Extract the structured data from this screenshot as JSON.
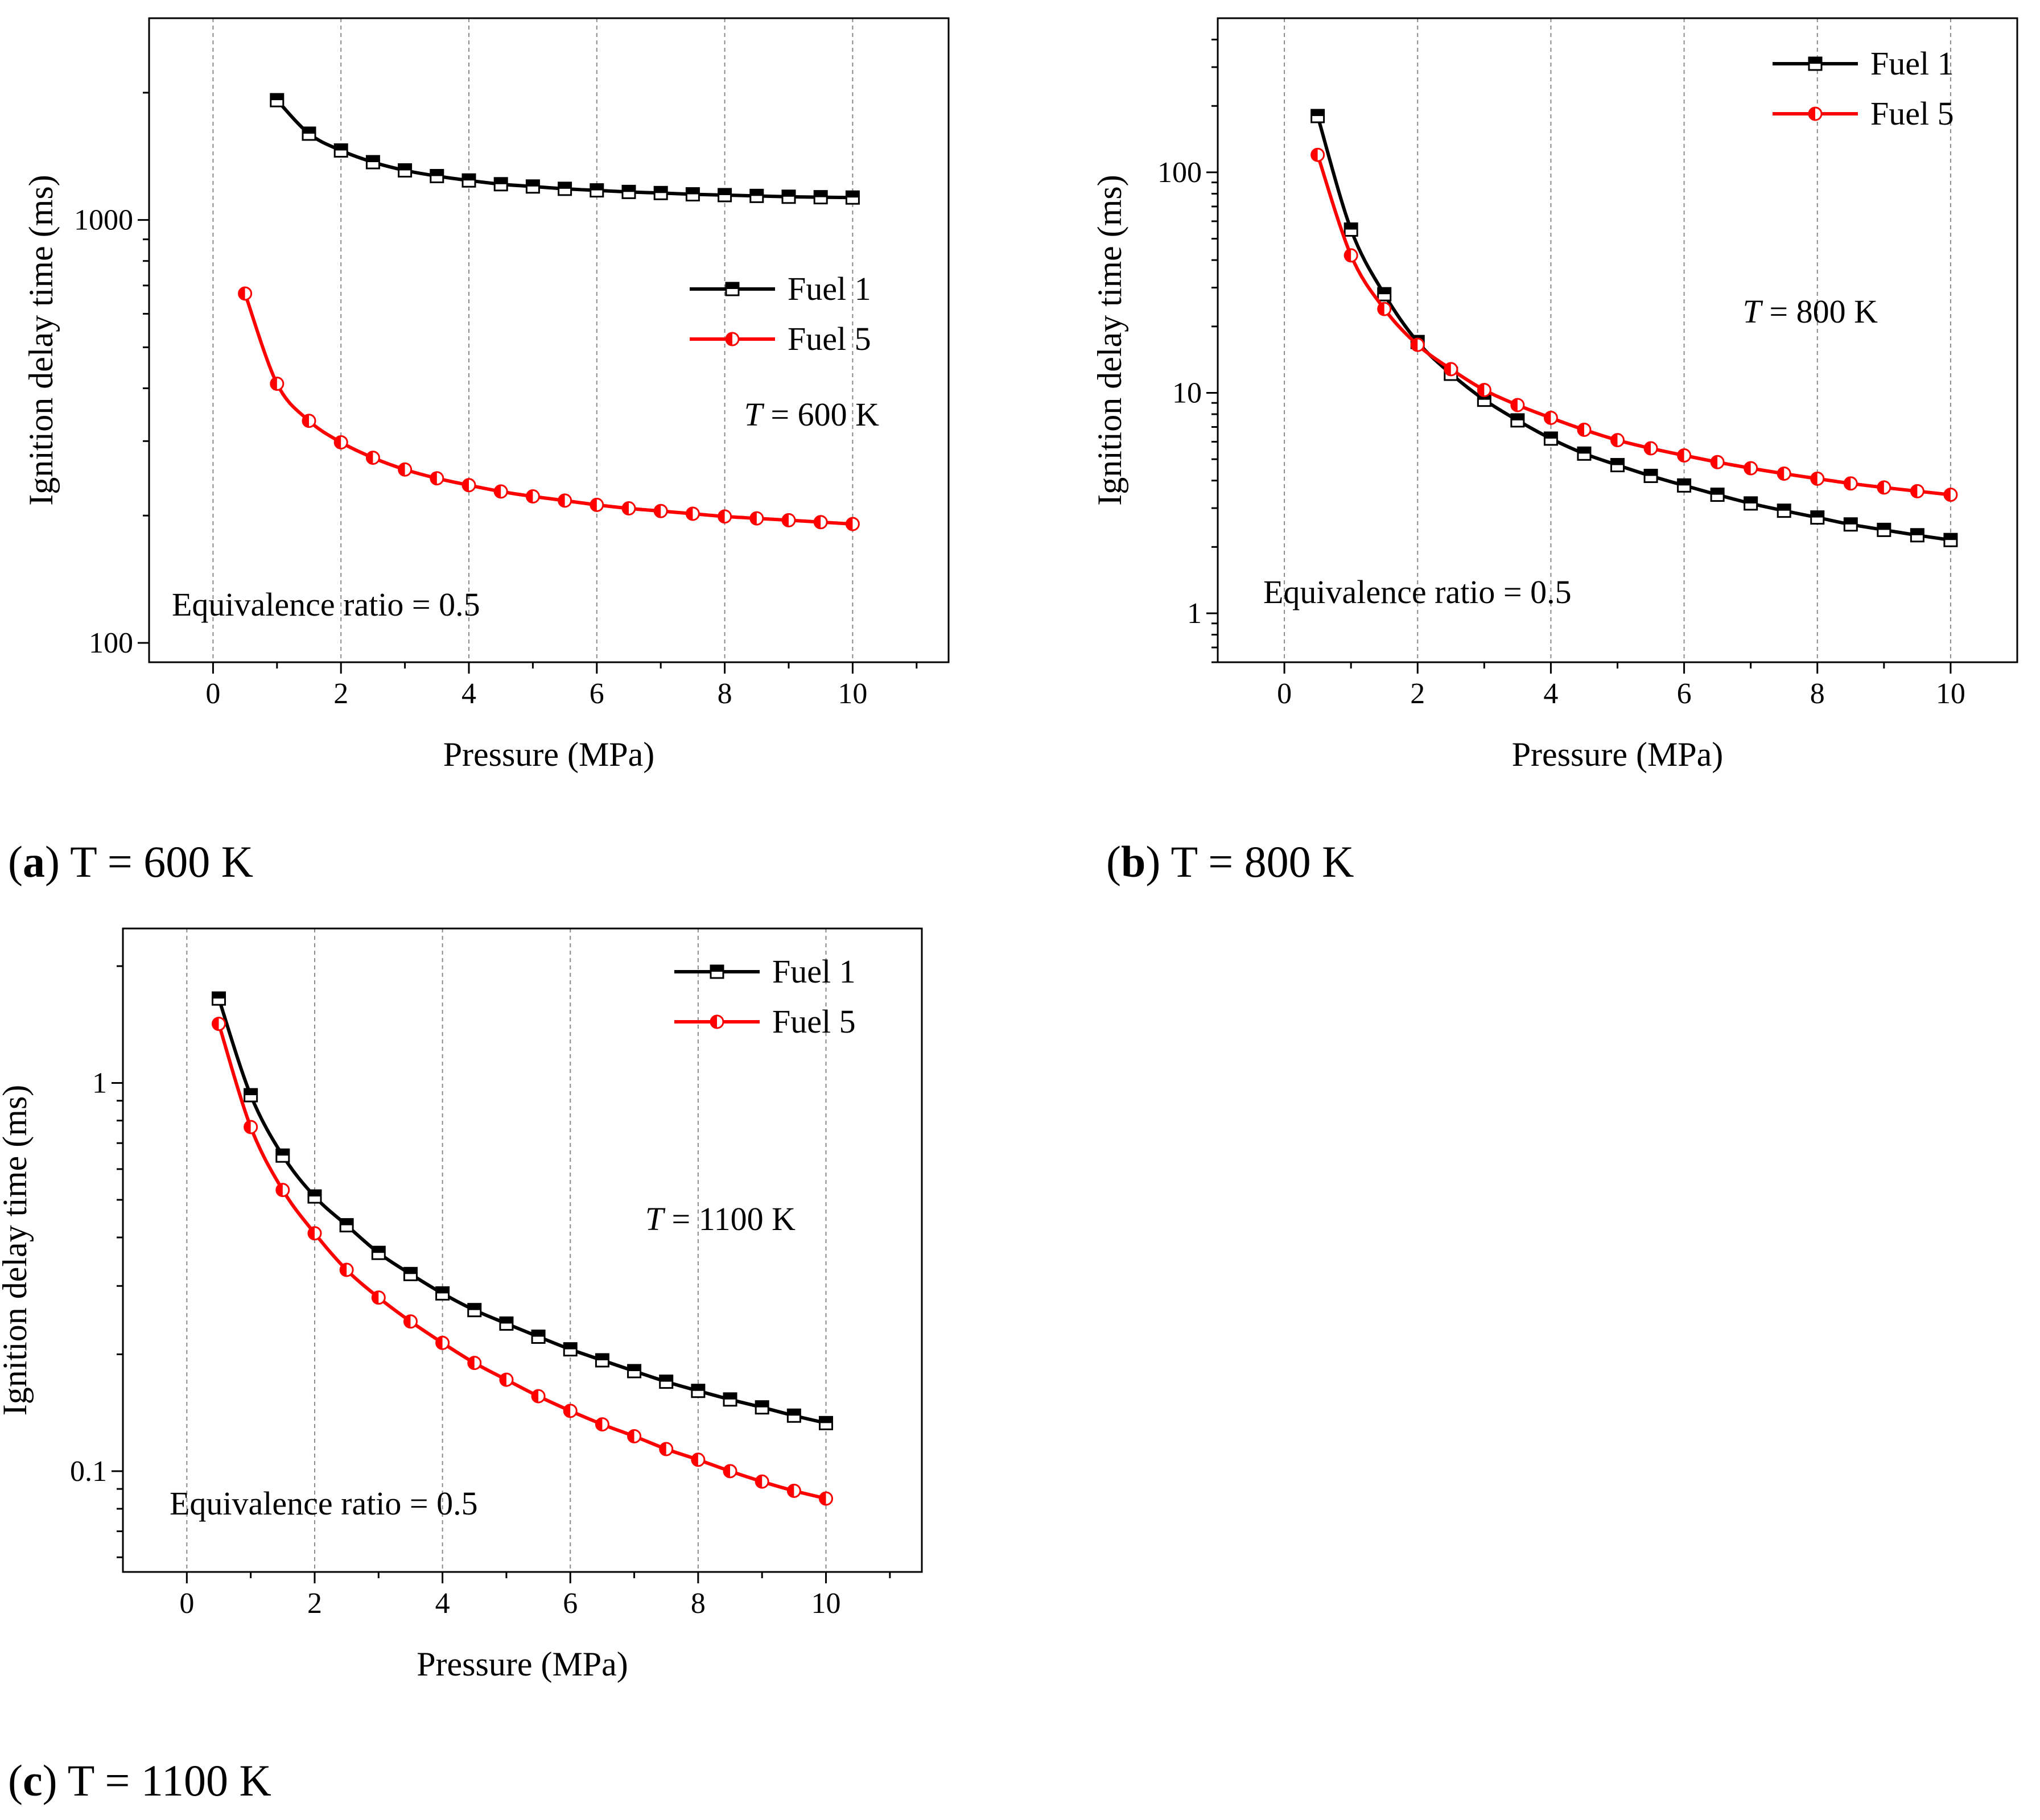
{
  "chart_data": [
    {
      "id": "a",
      "type": "line",
      "yscale": "log",
      "caption": {
        "letter": "a",
        "text": "T = 600 K"
      },
      "xlabel": "Pressure (MPa)",
      "ylabel": "Ignition delay time (ms)",
      "xlim": [
        -1,
        11.5
      ],
      "ylim": [
        90,
        3000
      ],
      "xticks": [
        0,
        2,
        4,
        6,
        8,
        10
      ],
      "xtick_labels": [
        "0",
        "2",
        "4",
        "6",
        "8",
        "10"
      ],
      "yticks": [
        100,
        1000
      ],
      "ytick_labels": [
        "100",
        "1000"
      ],
      "grid": "vertical dashed at x ticks",
      "legend": {
        "position": "middle-right"
      },
      "annotations": {
        "temperature_var": "T",
        "temperature_rest": " = 600 K",
        "equivalence": "Equivalence ratio = 0.5"
      },
      "series": [
        {
          "name": "Fuel 1",
          "color": "#000000",
          "marker": "square",
          "x": [
            1,
            1.5,
            2,
            2.5,
            3,
            3.5,
            4,
            4.5,
            5,
            5.5,
            6,
            6.5,
            7,
            7.5,
            8,
            8.5,
            9,
            9.5,
            10
          ],
          "y": [
            1920,
            1600,
            1460,
            1370,
            1310,
            1270,
            1240,
            1215,
            1200,
            1185,
            1175,
            1165,
            1158,
            1150,
            1145,
            1140,
            1135,
            1132,
            1130
          ]
        },
        {
          "name": "Fuel 5",
          "color": "#ff0000",
          "marker": "circle",
          "x": [
            0.5,
            1,
            1.5,
            2,
            2.5,
            3,
            3.5,
            4,
            4.5,
            5,
            5.5,
            6,
            6.5,
            7,
            7.5,
            8,
            8.5,
            9,
            9.5,
            10
          ],
          "y": [
            670,
            410,
            335,
            298,
            274,
            257,
            245,
            236,
            228,
            222,
            217,
            212,
            208,
            205,
            202,
            199,
            197,
            195,
            193,
            191
          ]
        }
      ]
    },
    {
      "id": "b",
      "type": "line",
      "yscale": "log",
      "caption": {
        "letter": "b",
        "text": "T = 800 K"
      },
      "xlabel": "Pressure (MPa)",
      "ylabel": "Ignition delay time (ms)",
      "xlim": [
        -1,
        11
      ],
      "ylim": [
        0.6,
        500
      ],
      "xticks": [
        0,
        2,
        4,
        6,
        8,
        10
      ],
      "xtick_labels": [
        "0",
        "2",
        "4",
        "6",
        "8",
        "10"
      ],
      "yticks": [
        1,
        10,
        100
      ],
      "ytick_labels": [
        "1",
        "10",
        "100"
      ],
      "grid": "vertical dashed at x ticks",
      "legend": {
        "position": "top-right"
      },
      "annotations": {
        "temperature_var": "T",
        "temperature_rest": " = 800 K",
        "equivalence": "Equivalence ratio = 0.5"
      },
      "series": [
        {
          "name": "Fuel 1",
          "color": "#000000",
          "marker": "square",
          "x": [
            0.5,
            1,
            1.5,
            2,
            2.5,
            3,
            3.5,
            4,
            4.5,
            5,
            5.5,
            6,
            6.5,
            7,
            7.5,
            8,
            8.5,
            9,
            9.5,
            10
          ],
          "y": [
            180,
            55,
            28,
            17,
            12.2,
            9.3,
            7.5,
            6.2,
            5.3,
            4.7,
            4.2,
            3.8,
            3.45,
            3.15,
            2.92,
            2.72,
            2.53,
            2.39,
            2.26,
            2.15
          ]
        },
        {
          "name": "Fuel 5",
          "color": "#ff0000",
          "marker": "circle",
          "x": [
            0.5,
            1,
            1.5,
            2,
            2.5,
            3,
            3.5,
            4,
            4.5,
            5,
            5.5,
            6,
            6.5,
            7,
            7.5,
            8,
            8.5,
            9,
            9.5,
            10
          ],
          "y": [
            120,
            42,
            24,
            16.5,
            12.8,
            10.3,
            8.8,
            7.7,
            6.8,
            6.1,
            5.6,
            5.2,
            4.85,
            4.55,
            4.3,
            4.08,
            3.88,
            3.72,
            3.58,
            3.45
          ]
        }
      ]
    },
    {
      "id": "c",
      "type": "line",
      "yscale": "log",
      "caption": {
        "letter": "c",
        "text": "T = 1100 K"
      },
      "xlabel": "Pressure (MPa)",
      "ylabel": "Ignition delay time (ms)",
      "xlim": [
        -1,
        11.5
      ],
      "ylim": [
        0.055,
        2.5
      ],
      "xticks": [
        0,
        2,
        4,
        6,
        8,
        10
      ],
      "xtick_labels": [
        "0",
        "2",
        "4",
        "6",
        "8",
        "10"
      ],
      "yticks": [
        0.1,
        1
      ],
      "ytick_labels": [
        "0.1",
        "1"
      ],
      "grid": "vertical dashed at x ticks",
      "legend": {
        "position": "top-right"
      },
      "annotations": {
        "temperature_var": "T",
        "temperature_rest": " = 1100 K",
        "equivalence": "Equivalence ratio = 0.5"
      },
      "series": [
        {
          "name": "Fuel 1",
          "color": "#000000",
          "marker": "square",
          "x": [
            0.5,
            1,
            1.5,
            2,
            2.5,
            3,
            3.5,
            4,
            4.5,
            5,
            5.5,
            6,
            6.5,
            7,
            7.5,
            8,
            8.5,
            9,
            9.5,
            10
          ],
          "y": [
            1.65,
            0.93,
            0.65,
            0.51,
            0.43,
            0.365,
            0.322,
            0.287,
            0.26,
            0.24,
            0.222,
            0.206,
            0.193,
            0.181,
            0.17,
            0.161,
            0.153,
            0.146,
            0.139,
            0.133
          ]
        },
        {
          "name": "Fuel 5",
          "color": "#ff0000",
          "marker": "circle",
          "x": [
            0.5,
            1,
            1.5,
            2,
            2.5,
            3,
            3.5,
            4,
            4.5,
            5,
            5.5,
            6,
            6.5,
            7,
            7.5,
            8,
            8.5,
            9,
            9.5,
            10
          ],
          "y": [
            1.42,
            0.77,
            0.53,
            0.41,
            0.33,
            0.28,
            0.243,
            0.214,
            0.19,
            0.172,
            0.156,
            0.143,
            0.132,
            0.123,
            0.114,
            0.107,
            0.1,
            0.094,
            0.089,
            0.085
          ]
        }
      ]
    }
  ]
}
